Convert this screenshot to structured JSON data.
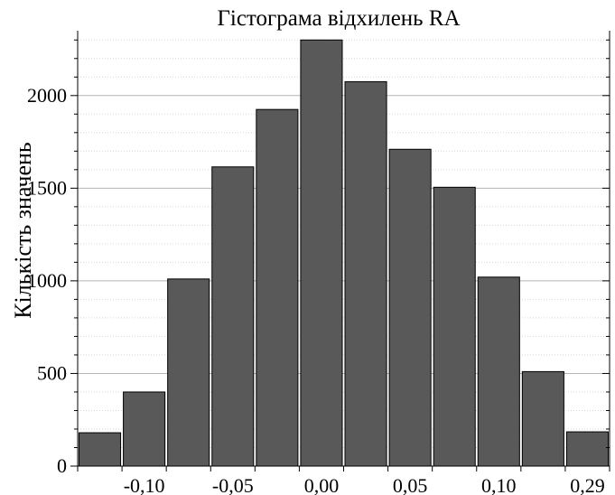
{
  "chart_data": {
    "type": "bar",
    "title": "Гістограма відхилень RA",
    "xlabel": "",
    "ylabel": "Кількість значень",
    "categories": [
      "",
      "-0,10",
      "",
      "-0,05",
      "",
      "0,00",
      "",
      "0,05",
      "",
      "0,10",
      "",
      "0,29"
    ],
    "values": [
      180,
      400,
      1010,
      1615,
      1925,
      2300,
      2075,
      1710,
      1505,
      1020,
      510,
      185
    ],
    "x_tick_labels": [
      "-0,10",
      "-0,05",
      "0,00",
      "0,05",
      "0,10",
      "0,29"
    ],
    "y_tick_labels": [
      "0",
      "500",
      "1000",
      "1500",
      "2000"
    ],
    "ylim": [
      0,
      2350
    ],
    "grid": "horizontal dotted",
    "bar_color": "#595959",
    "bar_edge_color": "#000000"
  }
}
